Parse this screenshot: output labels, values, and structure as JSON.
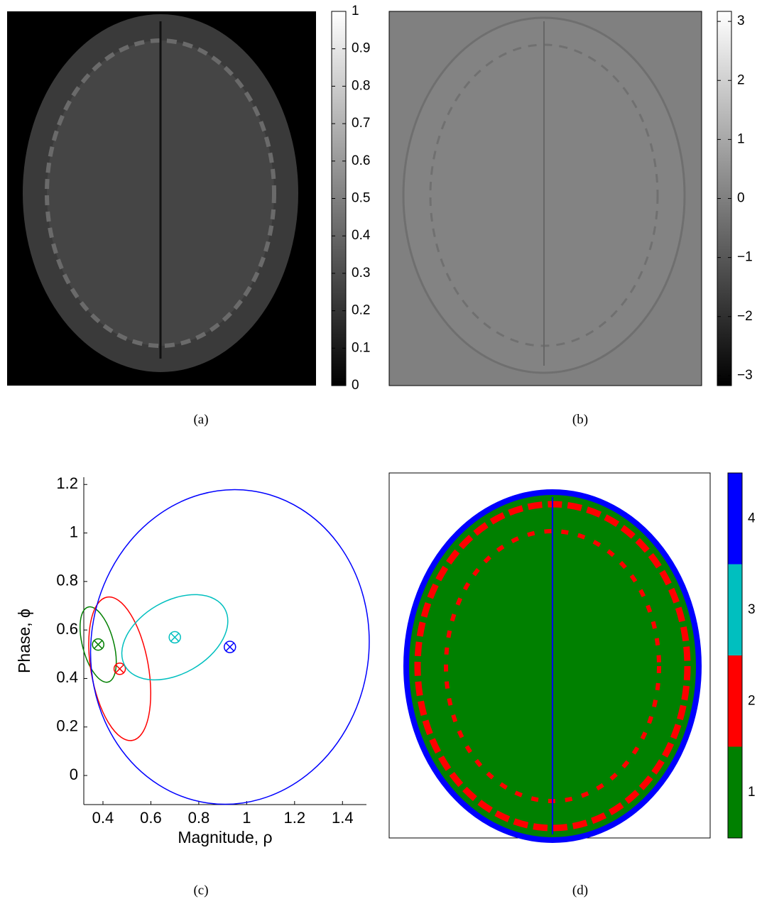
{
  "chart_data": [
    {
      "type": "image",
      "caption": "(a)",
      "colorbar": {
        "ylim": [
          0,
          1
        ],
        "yticks": [
          0,
          0.1,
          0.2,
          0.3,
          0.4,
          0.5,
          0.6,
          0.7,
          0.8,
          0.9,
          1
        ]
      }
    },
    {
      "type": "image",
      "caption": "(b)",
      "colorbar": {
        "ylim": [
          -3.17,
          3.17
        ],
        "yticks": [
          {
            "value": -3,
            "label": "−3"
          },
          {
            "value": -2,
            "label": "−2"
          },
          {
            "value": -1,
            "label": "−1"
          },
          0,
          1,
          2,
          3
        ]
      }
    },
    {
      "type": "scatter",
      "caption": "(c)",
      "x_label": "Magnitude, ρ",
      "y_label": "Phase, ϕ",
      "xlim": [
        0.32,
        1.5
      ],
      "ylim": [
        -0.12,
        1.23
      ],
      "xticks": [
        0.4,
        0.6,
        0.8,
        1,
        1.2,
        1.4
      ],
      "yticks": [
        0,
        0.2,
        0.4,
        0.6,
        0.8,
        1,
        1.2
      ],
      "series": [
        {
          "color": "#007f00",
          "x": [
            0.38
          ],
          "values": [
            0.54
          ],
          "ellipse": {
            "sx": 0.065,
            "sy": 0.16,
            "angle": -15
          }
        },
        {
          "color": "#ff0000",
          "x": [
            0.47
          ],
          "values": [
            0.44
          ],
          "ellipse": {
            "sx": 0.12,
            "sy": 0.3,
            "angle": -10
          }
        },
        {
          "color": "#00bfbf",
          "x": [
            0.7
          ],
          "values": [
            0.57
          ],
          "ellipse": {
            "sx": 0.24,
            "sy": 0.15,
            "angle": -30
          }
        },
        {
          "color": "#0000ff",
          "x": [
            0.93
          ],
          "values": [
            0.53
          ],
          "ellipse": {
            "sx": 0.58,
            "sy": 0.65,
            "angle": 8
          }
        }
      ]
    },
    {
      "type": "image",
      "caption": "(d)",
      "colorbar": {
        "ylim": [
          0.5,
          4.5
        ],
        "yticks": [
          1,
          2,
          3,
          4
        ],
        "colors": [
          "#008000",
          "#ff0000",
          "#00bfbf",
          "#0000ff"
        ]
      }
    }
  ]
}
